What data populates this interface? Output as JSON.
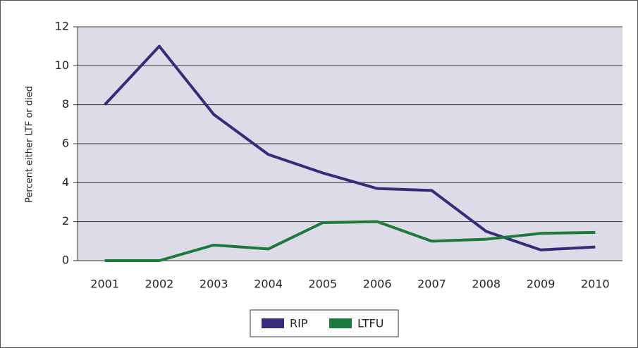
{
  "chart_data": {
    "type": "line",
    "y_label": "Percent either LTF or died",
    "categories": [
      "2001",
      "2002",
      "2003",
      "2004",
      "2005",
      "2006",
      "2007",
      "2008",
      "2009",
      "2010"
    ],
    "series": [
      {
        "name": "RIP",
        "color": "#372c7a",
        "values": [
          8.0,
          11.0,
          7.5,
          5.45,
          4.5,
          3.7,
          3.6,
          1.5,
          0.55,
          0.7
        ]
      },
      {
        "name": "LTFU",
        "color": "#1e7a3c",
        "values": [
          0,
          0,
          0.8,
          0.6,
          1.95,
          2.0,
          1.0,
          1.1,
          1.4,
          1.45
        ]
      }
    ],
    "ylim": [
      0,
      12
    ],
    "yticks": [
      0,
      2,
      4,
      6,
      8,
      10,
      12
    ],
    "grid": true,
    "plot_background": "#dedbe8",
    "legend": "bottom"
  }
}
